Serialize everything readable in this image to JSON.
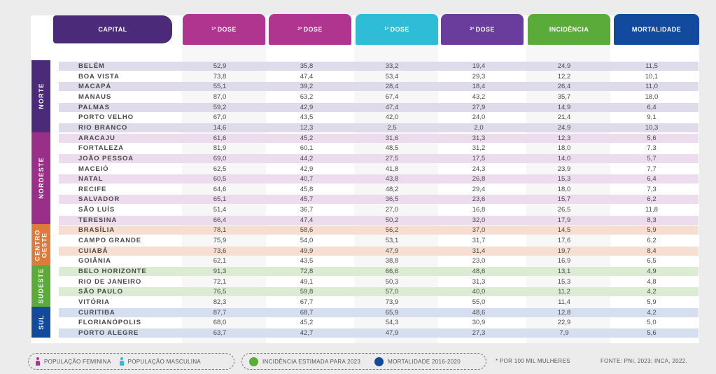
{
  "chart_data": {
    "type": "table",
    "columns": [
      {
        "key": "capital",
        "label": "CAPITAL",
        "color": "#4b2a7a"
      },
      {
        "key": "f1",
        "label": "DOSE",
        "sup": "1ª",
        "color": "#b0358f"
      },
      {
        "key": "f2",
        "label": "DOSE",
        "sup": "2ª",
        "color": "#b0358f"
      },
      {
        "key": "m1",
        "label": "DOSE",
        "sup": "1ª",
        "color": "#2fbcd6"
      },
      {
        "key": "m2",
        "label": "DOSE",
        "sup": "2ª",
        "color": "#6a3d9c"
      },
      {
        "key": "inc",
        "label": "INCIDÊNCIA",
        "color": "#5aab3a"
      },
      {
        "key": "mort",
        "label": "MORTALIDADE",
        "color": "#124b9e"
      }
    ],
    "regions": [
      {
        "label": "NORTE",
        "color": "#4b2a7a",
        "row_color": "#e0dbea",
        "rows": [
          {
            "capital": "BELÉM",
            "values": [
              "52,9",
              "35,8",
              "33,2",
              "19,4",
              "24,9",
              "11,5"
            ]
          },
          {
            "capital": "BOA VISTA",
            "values": [
              "73,8",
              "47,4",
              "53,4",
              "29,3",
              "12,2",
              "10,1"
            ]
          },
          {
            "capital": "MACAPÁ",
            "values": [
              "55,1",
              "39,2",
              "28,4",
              "18,4",
              "26,4",
              "11,0"
            ]
          },
          {
            "capital": "MANAUS",
            "values": [
              "87,0",
              "63,2",
              "67,4",
              "43,2",
              "35,7",
              "18,0"
            ]
          },
          {
            "capital": "PALMAS",
            "values": [
              "59,2",
              "42,9",
              "47,4",
              "27,9",
              "14,9",
              "6,4"
            ]
          },
          {
            "capital": "PORTO VELHO",
            "values": [
              "67,0",
              "43,5",
              "42,0",
              "24,0",
              "21,4",
              "9,1"
            ]
          },
          {
            "capital": "RIO BRANCO",
            "values": [
              "14,6",
              "12,3",
              "2,5",
              "2,0",
              "24,9",
              "10,3"
            ]
          }
        ]
      },
      {
        "label": "NORDESTE",
        "color": "#9a2f8a",
        "row_color": "#ecdced",
        "rows": [
          {
            "capital": "ARACAJU",
            "values": [
              "61,6",
              "45,2",
              "31,6",
              "31,3",
              "12,3",
              "5,6"
            ]
          },
          {
            "capital": "FORTALEZA",
            "values": [
              "81,9",
              "60,1",
              "48,5",
              "31,2",
              "18,0",
              "7,3"
            ]
          },
          {
            "capital": "JOÃO PESSOA",
            "values": [
              "69,0",
              "44,2",
              "27,5",
              "17,5",
              "14,0",
              "5,7"
            ]
          },
          {
            "capital": "MACEIÓ",
            "values": [
              "62,5",
              "42,9",
              "41,8",
              "24,3",
              "23,9",
              "7,7"
            ]
          },
          {
            "capital": "NATAL",
            "values": [
              "60,5",
              "40,7",
              "43,8",
              "26,8",
              "15,3",
              "6,4"
            ]
          },
          {
            "capital": "RECIFE",
            "values": [
              "64,6",
              "45,8",
              "48,2",
              "29,4",
              "18,0",
              "7,3"
            ]
          },
          {
            "capital": "SALVADOR",
            "values": [
              "65,1",
              "45,7",
              "36,5",
              "23,6",
              "15,7",
              "6,2"
            ]
          },
          {
            "capital": "SÃO LUÍS",
            "values": [
              "51,4",
              "36,7",
              "27,0",
              "16,8",
              "26,5",
              "11,8"
            ]
          },
          {
            "capital": "TERESINA",
            "values": [
              "66,4",
              "47,4",
              "50,2",
              "32,0",
              "17,9",
              "8,3"
            ]
          }
        ]
      },
      {
        "label": "CENTRO OESTE",
        "color": "#e07a3c",
        "row_color": "#f6dfd0",
        "rows": [
          {
            "capital": "BRASÍLIA",
            "values": [
              "78,1",
              "58,6",
              "56,2",
              "37,0",
              "14,5",
              "5,9"
            ]
          },
          {
            "capital": "CAMPO GRANDE",
            "values": [
              "75,9",
              "54,0",
              "53,1",
              "31,7",
              "17,6",
              "6,2"
            ]
          },
          {
            "capital": "CUIABÁ",
            "values": [
              "73,6",
              "49,9",
              "47,9",
              "31,4",
              "19,7",
              "8,4"
            ]
          },
          {
            "capital": "GOIÂNIA",
            "values": [
              "62,1",
              "43,5",
              "38,8",
              "23,0",
              "16,9",
              "6,5"
            ]
          }
        ]
      },
      {
        "label": "SUDESTE",
        "color": "#5aab3a",
        "row_color": "#dcebd3",
        "rows": [
          {
            "capital": "BELO HORIZONTE",
            "values": [
              "91,3",
              "72,8",
              "66,6",
              "48,6",
              "13,1",
              "4,9"
            ]
          },
          {
            "capital": "RIO DE JANEIRO",
            "values": [
              "72,1",
              "49,1",
              "50,3",
              "31,3",
              "15,3",
              "4,8"
            ]
          },
          {
            "capital": "SÃO PAULO",
            "values": [
              "76,5",
              "59,8",
              "57,0",
              "40,0",
              "11,2",
              "4,2"
            ]
          },
          {
            "capital": "VITÓRIA",
            "values": [
              "82,3",
              "67,7",
              "73,9",
              "55,0",
              "11,4",
              "5,9"
            ]
          }
        ]
      },
      {
        "label": "SUL",
        "color": "#124b9e",
        "row_color": "#d5dff0",
        "rows": [
          {
            "capital": "CURITIBA",
            "values": [
              "87,7",
              "68,7",
              "65,9",
              "48,6",
              "12,8",
              "4,2"
            ]
          },
          {
            "capital": "FLORIANÓPOLIS",
            "values": [
              "68,0",
              "45,2",
              "54,3",
              "30,9",
              "22,9",
              "5,0"
            ]
          },
          {
            "capital": "PORTO ALEGRE",
            "values": [
              "63,7",
              "42,7",
              "47,9",
              "27,3",
              "7,9",
              "5,6"
            ]
          }
        ]
      }
    ]
  },
  "legend": {
    "female_label": "POPULAÇÃO FEMININA",
    "female_color": "#b0358f",
    "male_label": "POPULAÇÃO MASCULINA",
    "male_color": "#2fbcd6",
    "incidence_label": "INCIDÊNCIA ESTIMADA PARA 2023",
    "incidence_color": "#5aab3a",
    "mortality_label": "MORTALIDADE 2016-2020",
    "mortality_color": "#124b9e",
    "footnote": "* POR 100 MIL MULHERES",
    "source": "FONTE: PNI, 2023; INCA, 2022."
  }
}
